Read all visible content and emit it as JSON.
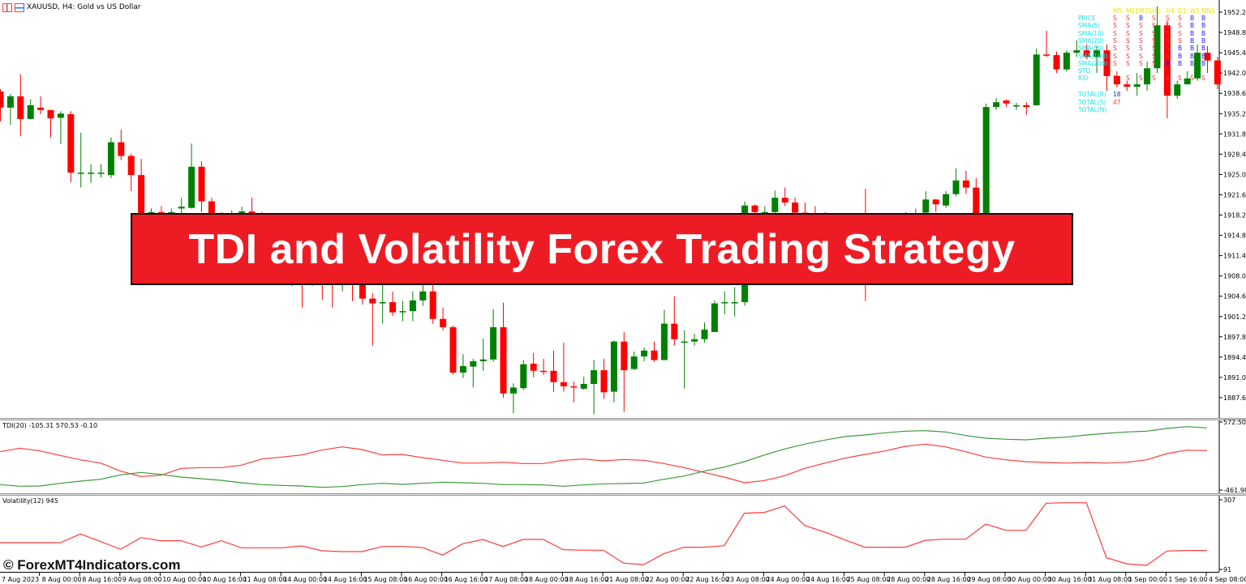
{
  "window": {
    "title": "XAUUSD, H4:  Gold vs US Dollar",
    "icons": [
      "grid-icon",
      "chart-icon"
    ]
  },
  "banner": {
    "text": "TDI and Volatility Forex Trading Strategy",
    "background": "#ed1c24"
  },
  "watermark": "© ForexMT4Indicators.com",
  "colors": {
    "bull": "#008000",
    "bear": "#ff0000",
    "tdi_fast": "#ff3b3b",
    "tdi_slow": "#3a9a3a",
    "volatility": "#ff3b3b"
  },
  "price_axis": [
    "1952.20",
    "1948.80",
    "1945.40",
    "1942.00",
    "1938.60",
    "1935.20",
    "1931.80",
    "1928.40",
    "1925.00",
    "1921.60",
    "1918.20",
    "1914.80",
    "1911.40",
    "1908.00",
    "1904.60",
    "1901.20",
    "1897.80",
    "1894.40",
    "1891.00",
    "1887.60"
  ],
  "time_axis": [
    "7 Aug 2023",
    "8 Aug 00:00",
    "8 Aug 16:00",
    "9 Aug 08:00",
    "10 Aug 00:00",
    "10 Aug 16:00",
    "11 Aug 08:00",
    "14 Aug 00:00",
    "14 Aug 16:00",
    "15 Aug 08:00",
    "16 Aug 00:00",
    "16 Aug 16:00",
    "17 Aug 08:00",
    "18 Aug 00:00",
    "18 Aug 16:00",
    "21 Aug 08:00",
    "22 Aug 00:00",
    "22 Aug 16:00",
    "23 Aug 08:00",
    "24 Aug 00:00",
    "24 Aug 16:00",
    "25 Aug 08:00",
    "28 Aug 00:00",
    "28 Aug 16:00",
    "29 Aug 08:00",
    "30 Aug 00:00",
    "30 Aug 16:00",
    "31 Aug 08:00",
    "1 Sep 00:00",
    "1 Sep 16:00",
    "4 Sep 08:00"
  ],
  "signal_table": {
    "timeframes": [
      "M5",
      "M15",
      "M30",
      "H1",
      "H4",
      "D1",
      "W1",
      "MN1"
    ],
    "rows": [
      {
        "label": "PRICE",
        "signals": [
          "S",
          "S",
          "B",
          "S",
          "S",
          "S",
          "B",
          "B"
        ]
      },
      {
        "label": "SMA(5)",
        "signals": [
          "S",
          "S",
          "S",
          "S",
          "S",
          "S",
          "B",
          "B"
        ]
      },
      {
        "label": "SMA(10)",
        "signals": [
          "S",
          "S",
          "S",
          "S",
          "S",
          "S",
          "B",
          "B"
        ]
      },
      {
        "label": "SMA(20)",
        "signals": [
          "S",
          "S",
          "S",
          "S",
          "S",
          "S",
          "B",
          "B"
        ]
      },
      {
        "label": "SMA(50)",
        "signals": [
          "S",
          "S",
          "S",
          "S",
          "S",
          "B",
          "B",
          "B"
        ]
      },
      {
        "label": "SMA(100)",
        "signals": [
          "S",
          "S",
          "S",
          "S",
          "S",
          "B",
          "B",
          "B"
        ]
      },
      {
        "label": "SMA(200)",
        "signals": [
          "S",
          "S",
          "S",
          "S",
          "B",
          "B",
          "B",
          "B"
        ]
      },
      {
        "label": "STO",
        "signals": [
          "",
          "",
          "",
          "",
          "",
          "",
          "",
          ""
        ]
      },
      {
        "label": "RSI",
        "signals": [
          "S",
          "S",
          "S",
          "S",
          "S",
          "S",
          "S",
          "S"
        ]
      }
    ],
    "totals": [
      {
        "label": "TOTAL(B)",
        "value": "18",
        "kind": "B"
      },
      {
        "label": "TOTAL(S)",
        "value": "47",
        "kind": "S"
      },
      {
        "label": "TOTAL(N)",
        "value": "",
        "kind": "N"
      }
    ]
  },
  "chart_data": [
    {
      "type": "candlestick",
      "symbol": "XAUUSD",
      "timeframe": "H4",
      "ylim": [
        1884.5,
        1954.2
      ],
      "candles_ohlc": [
        [
          1938.9,
          1939.3,
          1933.9,
          1936.2
        ],
        [
          1936.2,
          1938.5,
          1933.3,
          1938.1
        ],
        [
          1938.1,
          1941.8,
          1931.4,
          1934.3
        ],
        [
          1934.3,
          1937.6,
          1934.2,
          1936.6
        ],
        [
          1936.2,
          1938.1,
          1935.1,
          1935.8
        ],
        [
          1935.8,
          1935.8,
          1931.2,
          1934.4
        ],
        [
          1934.5,
          1935.6,
          1930.1,
          1935.2
        ],
        [
          1935.1,
          1935.6,
          1923.7,
          1925.3
        ],
        [
          1925.3,
          1932.0,
          1922.8,
          1925.3
        ],
        [
          1925.3,
          1926.7,
          1923.6,
          1925.3
        ],
        [
          1925.1,
          1926.7,
          1924.5,
          1925.3
        ],
        [
          1924.9,
          1931.2,
          1924.4,
          1930.4
        ],
        [
          1930.4,
          1932.5,
          1927.4,
          1928.1
        ],
        [
          1928.1,
          1928.5,
          1922.2,
          1924.9
        ],
        [
          1924.9,
          1927.6,
          1917.0,
          1917.9
        ],
        [
          1917.9,
          1919.3,
          1916.3,
          1918.7
        ],
        [
          1918.7,
          1919.7,
          1915.6,
          1917.6
        ],
        [
          1917.6,
          1919.3,
          1917.0,
          1918.7
        ],
        [
          1919.3,
          1921.1,
          1917.6,
          1919.6
        ],
        [
          1919.4,
          1930.2,
          1919.3,
          1926.3
        ],
        [
          1926.3,
          1927.2,
          1918.7,
          1920.5
        ],
        [
          1920.5,
          1921.1,
          1916.3,
          1917.9
        ],
        [
          1917.9,
          1918.7,
          1914.9,
          1917.3
        ],
        [
          1917.3,
          1919.0,
          1915.6,
          1918.3
        ],
        [
          1918.3,
          1919.6,
          1916.3,
          1918.8
        ],
        [
          1918.8,
          1921.1,
          1916.0,
          1918.4
        ],
        [
          1918.4,
          1918.7,
          1913.5,
          1917.0
        ],
        [
          1917.0,
          1917.6,
          1912.9,
          1915.6
        ],
        [
          1915.6,
          1916.3,
          1910.8,
          1913.5
        ],
        [
          1913.5,
          1914.2,
          1906.3,
          1911.5
        ],
        [
          1911.5,
          1912.2,
          1902.7,
          1910.1
        ],
        [
          1910.1,
          1910.8,
          1906.3,
          1908.8
        ],
        [
          1908.8,
          1909.5,
          1904.0,
          1908.1
        ],
        [
          1908.1,
          1908.8,
          1902.7,
          1906.7
        ],
        [
          1906.7,
          1908.1,
          1905.4,
          1907.4
        ],
        [
          1907.4,
          1908.1,
          1903.8,
          1906.5
        ],
        [
          1906.5,
          1907.4,
          1903.2,
          1904.2
        ],
        [
          1904.2,
          1905.1,
          1896.3,
          1903.4
        ],
        [
          1903.5,
          1906.7,
          1900.0,
          1903.6
        ],
        [
          1903.6,
          1905.4,
          1901.3,
          1901.9
        ],
        [
          1901.9,
          1903.8,
          1900.4,
          1902.1
        ],
        [
          1902.1,
          1905.4,
          1900.4,
          1903.9
        ],
        [
          1903.9,
          1906.5,
          1903.0,
          1905.4
        ],
        [
          1905.4,
          1906.5,
          1900.0,
          1900.8
        ],
        [
          1900.8,
          1902.7,
          1898.9,
          1899.4
        ],
        [
          1899.4,
          1899.7,
          1891.5,
          1891.8
        ],
        [
          1891.8,
          1894.9,
          1890.9,
          1892.9
        ],
        [
          1892.8,
          1894.1,
          1889.3,
          1893.7
        ],
        [
          1893.7,
          1897.5,
          1892.1,
          1894.0
        ],
        [
          1894.0,
          1902.4,
          1893.6,
          1899.4
        ],
        [
          1899.4,
          1903.5,
          1887.6,
          1888.3
        ],
        [
          1888.3,
          1890.0,
          1885.0,
          1889.3
        ],
        [
          1889.2,
          1893.9,
          1888.9,
          1893.2
        ],
        [
          1893.3,
          1895.1,
          1891.0,
          1892.1
        ],
        [
          1892.1,
          1894.1,
          1891.4,
          1891.9
        ],
        [
          1892.1,
          1895.5,
          1888.6,
          1890.2
        ],
        [
          1890.2,
          1896.8,
          1888.6,
          1889.5
        ],
        [
          1889.5,
          1890.3,
          1886.8,
          1889.3
        ],
        [
          1889.1,
          1891.1,
          1888.9,
          1889.9
        ],
        [
          1889.9,
          1893.9,
          1884.8,
          1892.2
        ],
        [
          1892.2,
          1894.1,
          1887.4,
          1888.5
        ],
        [
          1888.6,
          1897.2,
          1886.8,
          1897.0
        ],
        [
          1897.0,
          1898.6,
          1885.2,
          1892.2
        ],
        [
          1892.4,
          1895.3,
          1892.2,
          1894.5
        ],
        [
          1894.5,
          1896.0,
          1893.7,
          1895.5
        ],
        [
          1895.5,
          1897.0,
          1893.6,
          1893.9
        ],
        [
          1893.9,
          1902.3,
          1893.9,
          1900.0
        ],
        [
          1900.0,
          1904.6,
          1896.3,
          1897.4
        ],
        [
          1897.0,
          1898.9,
          1889.1,
          1897.0
        ],
        [
          1897.0,
          1898.3,
          1896.3,
          1897.4
        ],
        [
          1897.4,
          1900.2,
          1896.8,
          1899.0
        ],
        [
          1898.6,
          1903.9,
          1898.6,
          1903.4
        ],
        [
          1903.5,
          1905.4,
          1901.6,
          1903.6
        ],
        [
          1903.6,
          1906.1,
          1901.2,
          1903.6
        ],
        [
          1903.6,
          1920.5,
          1903.0,
          1919.8
        ],
        [
          1919.8,
          1920.0,
          1916.3,
          1918.7
        ],
        [
          1918.7,
          1919.7,
          1917.0,
          1918.7
        ],
        [
          1918.7,
          1922.3,
          1918.0,
          1921.1
        ],
        [
          1921.1,
          1922.8,
          1919.7,
          1920.3
        ],
        [
          1920.3,
          1921.1,
          1917.3,
          1918.6
        ],
        [
          1918.6,
          1920.3,
          1915.6,
          1917.6
        ],
        [
          1917.6,
          1919.7,
          1914.9,
          1917.0
        ],
        [
          1917.0,
          1918.7,
          1913.5,
          1916.3
        ],
        [
          1916.3,
          1917.6,
          1912.9,
          1915.6
        ],
        [
          1915.6,
          1917.6,
          1913.5,
          1916.0
        ],
        [
          1916.0,
          1917.0,
          1912.2,
          1914.9
        ],
        [
          1914.9,
          1922.6,
          1903.8,
          1914.2
        ],
        [
          1914.2,
          1917.0,
          1912.9,
          1915.2
        ],
        [
          1915.2,
          1917.0,
          1913.5,
          1915.6
        ],
        [
          1915.6,
          1917.6,
          1914.2,
          1916.5
        ],
        [
          1916.5,
          1918.7,
          1915.6,
          1917.6
        ],
        [
          1917.6,
          1919.3,
          1916.3,
          1918.3
        ],
        [
          1918.6,
          1922.2,
          1918.3,
          1920.8
        ],
        [
          1920.8,
          1920.9,
          1918.7,
          1920.0
        ],
        [
          1919.8,
          1922.2,
          1919.4,
          1921.7
        ],
        [
          1921.7,
          1926.0,
          1921.3,
          1924.0
        ],
        [
          1924.0,
          1925.6,
          1921.7,
          1922.8
        ],
        [
          1922.8,
          1924.4,
          1917.9,
          1918.3
        ],
        [
          1918.3,
          1936.9,
          1914.2,
          1936.3
        ],
        [
          1936.3,
          1937.8,
          1935.8,
          1937.1
        ],
        [
          1937.4,
          1937.6,
          1936.3,
          1936.9
        ],
        [
          1936.5,
          1937.0,
          1935.8,
          1936.6
        ],
        [
          1936.6,
          1937.1,
          1935.0,
          1936.3
        ],
        [
          1936.6,
          1946.1,
          1936.5,
          1945.1
        ],
        [
          1945.1,
          1949.1,
          1944.7,
          1945.0
        ],
        [
          1945.0,
          1945.6,
          1942.0,
          1942.6
        ],
        [
          1942.6,
          1945.8,
          1942.3,
          1945.4
        ],
        [
          1945.4,
          1947.5,
          1944.7,
          1945.8
        ],
        [
          1945.8,
          1946.8,
          1944.3,
          1944.7
        ],
        [
          1944.7,
          1946.5,
          1942.0,
          1945.8
        ],
        [
          1945.8,
          1946.8,
          1939.0,
          1941.5
        ],
        [
          1941.5,
          1942.3,
          1939.6,
          1940.1
        ],
        [
          1940.1,
          1940.7,
          1939.0,
          1939.7
        ],
        [
          1939.7,
          1942.0,
          1938.2,
          1940.1
        ],
        [
          1940.1,
          1943.9,
          1939.0,
          1942.8
        ],
        [
          1942.8,
          1953.2,
          1942.0,
          1950.0
        ],
        [
          1950.0,
          1950.8,
          1934.4,
          1938.2
        ],
        [
          1938.2,
          1940.7,
          1937.7,
          1940.1
        ],
        [
          1940.1,
          1942.3,
          1940.1,
          1941.1
        ],
        [
          1941.1,
          1946.8,
          1940.7,
          1945.4
        ],
        [
          1945.4,
          1946.5,
          1942.0,
          1944.1
        ],
        [
          1944.1,
          1944.7,
          1939.3,
          1940.1
        ]
      ]
    },
    {
      "type": "line",
      "label": "TDI(20) -105.31 570.53 -0.10",
      "axis_labels": [
        "572.50",
        "-461.98"
      ],
      "ylim": [
        -461.98,
        572.5
      ],
      "series": [
        {
          "values": [
            121.0,
            174.3,
            133.3,
            63.5,
            -2.2,
            -51.5,
            -174.6,
            -256.7,
            -236.2,
            -133.6,
            -121.2,
            -121.2,
            -84.3,
            10.1,
            38.9,
            71.7,
            145.6,
            194.8,
            153.8,
            71.7,
            79.9,
            30.6,
            -10.4,
            -51.5,
            -51.5,
            -39.1,
            -59.7,
            -59.7,
            -10.4,
            10.1,
            -18.6,
            1.9,
            -10.4,
            -59.7,
            -121.2,
            -195.1,
            -264.9,
            -351.1,
            -318.3,
            -244.4,
            -133.6,
            -51.5,
            22.4,
            79.9,
            133.3,
            203.1,
            235.9,
            194.8,
            121.0,
            38.9,
            -2.2,
            -30.9,
            -43.2,
            -51.5,
            -43.2,
            -51.5,
            -39.1,
            -2.2,
            92.2,
            145.6,
            137.4
          ]
        },
        {
          "values": [
            -379.9,
            -404.5,
            -400.4,
            -359.3,
            -326.5,
            -297.8,
            -232.1,
            -195.1,
            -223.9,
            -264.9,
            -289.6,
            -314.2,
            -351.1,
            -379.9,
            -392.2,
            -400.4,
            -420.9,
            -408.6,
            -379.9,
            -359.3,
            -375.7,
            -359.3,
            -342.9,
            -351.1,
            -359.3,
            -379.9,
            -379.9,
            -384.0,
            -404.5,
            -384.0,
            -367.5,
            -363.4,
            -355.2,
            -297.8,
            -248.5,
            -174.6,
            -113.0,
            -30.9,
            71.7,
            162.0,
            235.9,
            297.5,
            350.8,
            375.5,
            408.3,
            432.9,
            441.1,
            420.6,
            367.3,
            326.2,
            309.8,
            301.6,
            326.2,
            342.6,
            375.5,
            400.1,
            420.6,
            432.9,
            474.0,
            502.7,
            482.2
          ]
        }
      ]
    },
    {
      "type": "line",
      "label": "Volatility(12) 945",
      "axis_labels": [
        "307",
        "91"
      ],
      "ylim": [
        91,
        307
      ],
      "series": [
        {
          "values": [
            173.9,
            173.9,
            173.9,
            173.9,
            200.7,
            177.3,
            153.8,
            189.8,
            179.8,
            179.8,
            160.5,
            179.8,
            158.0,
            158.0,
            158.0,
            163.9,
            148.8,
            146.3,
            146.3,
            162.2,
            162.2,
            158.9,
            135.4,
            170.6,
            184.0,
            162.2,
            184.0,
            184.0,
            152.2,
            150.5,
            150.5,
            110.3,
            106.1,
            139.6,
            159.7,
            159.7,
            164.7,
            265.2,
            267.7,
            287.8,
            227.5,
            206.6,
            182.3,
            159.7,
            159.7,
            159.7,
            181.5,
            184.8,
            184.8,
            231.7,
            212.4,
            212.4,
            296.1,
            297.8,
            297.8,
            127.1,
            108.6,
            103.6,
            148.0,
            149.7,
            149.7
          ]
        }
      ]
    }
  ]
}
